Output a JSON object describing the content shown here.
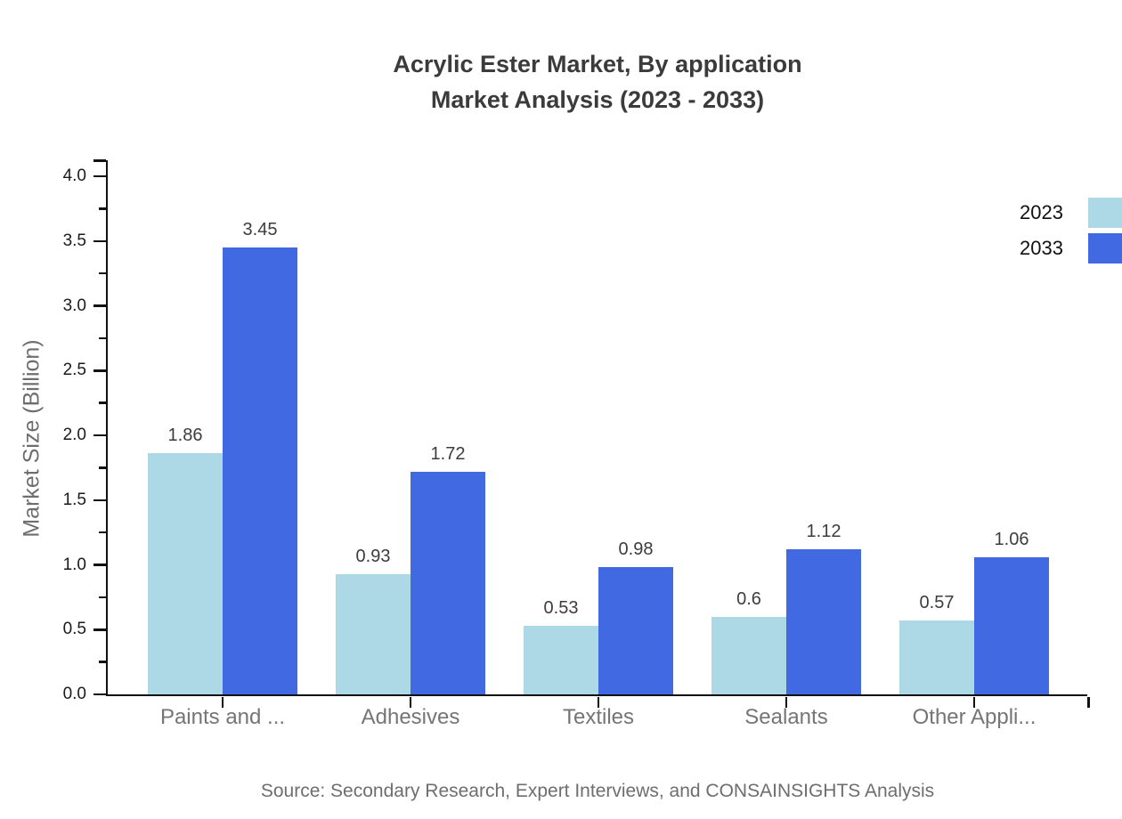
{
  "title": {
    "line1": "Acrylic Ester Market, By application",
    "line2": "Market Analysis (2023 - 2033)"
  },
  "chart_data": {
    "type": "bar",
    "categories": [
      "Paints and ...",
      "Adhesives",
      "Textiles",
      "Sealants",
      "Other Appli..."
    ],
    "series": [
      {
        "name": "2023",
        "color": "#ADD8E6",
        "values": [
          1.86,
          0.93,
          0.53,
          0.6,
          0.57
        ]
      },
      {
        "name": "2033",
        "color": "#4169E1",
        "values": [
          3.45,
          1.72,
          0.98,
          1.12,
          1.06
        ]
      }
    ],
    "title": "Acrylic Ester Market, By application Market Analysis (2023 - 2033)",
    "xlabel": "",
    "ylabel": "Market Size (Billion)",
    "ylim": [
      0,
      4.0
    ],
    "ytick_step": 0.5,
    "ytick_minor_step": 0.25,
    "ytick_labels": [
      "0.0",
      "0.5",
      "1.0",
      "1.5",
      "2.0",
      "2.5",
      "3.0",
      "3.5",
      "4.0"
    ],
    "value_labels": true,
    "grid": false,
    "legend_position": "top-right"
  },
  "legend": {
    "items": [
      {
        "label": "2023",
        "color": "#ADD8E6"
      },
      {
        "label": "2033",
        "color": "#4169E1"
      }
    ]
  },
  "source": {
    "text": "Source: Secondary Research, Expert Interviews, and CONSAINSIGHTS Analysis"
  },
  "colors": {
    "axis": "#111111",
    "title_text": "#3b3b3b",
    "ytick_text": "#1a1a1a",
    "category_text": "#757575",
    "value_text": "#3c3c3c",
    "muted_text": "#6e6e6e",
    "background": "#ffffff"
  }
}
